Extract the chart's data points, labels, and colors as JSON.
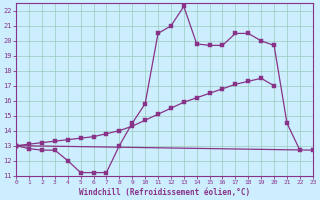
{
  "xlabel": "Windchill (Refroidissement éolien,°C)",
  "background_color": "#cceeff",
  "grid_color": "#99ccbb",
  "line_color": "#883388",
  "xlim": [
    0,
    23
  ],
  "ylim": [
    11,
    22.5
  ],
  "xticks": [
    0,
    1,
    2,
    3,
    4,
    5,
    6,
    7,
    8,
    9,
    10,
    11,
    12,
    13,
    14,
    15,
    16,
    17,
    18,
    19,
    20,
    21,
    22,
    23
  ],
  "yticks": [
    11,
    12,
    13,
    14,
    15,
    16,
    17,
    18,
    19,
    20,
    21,
    22
  ],
  "line1_x": [
    0,
    1,
    2,
    3,
    4,
    5,
    6,
    7,
    8,
    9,
    10,
    11,
    12,
    13,
    14,
    15,
    16,
    17,
    18,
    19,
    20,
    21,
    22
  ],
  "line1_y": [
    13,
    12.8,
    12.7,
    12.7,
    12.0,
    11.2,
    11.2,
    11.2,
    13.0,
    14.5,
    15.8,
    20.5,
    21.0,
    22.3,
    19.8,
    19.7,
    19.7,
    20.5,
    20.5,
    20.0,
    19.7,
    14.5,
    12.7
  ],
  "line2_x": [
    0,
    1,
    2,
    3,
    4,
    5,
    6,
    7,
    8,
    9,
    10,
    11,
    12,
    13,
    14,
    15,
    16,
    17,
    18,
    19,
    20,
    21,
    22,
    23
  ],
  "line2_y": [
    13,
    13.1,
    13.2,
    13.3,
    13.4,
    13.5,
    13.6,
    13.8,
    14.0,
    14.3,
    14.7,
    15.1,
    15.5,
    15.9,
    16.2,
    16.5,
    16.8,
    17.1,
    17.3,
    17.5,
    17.0,
    null,
    null,
    null
  ],
  "line3_x": [
    0,
    23
  ],
  "line3_y": [
    13,
    12.7
  ]
}
